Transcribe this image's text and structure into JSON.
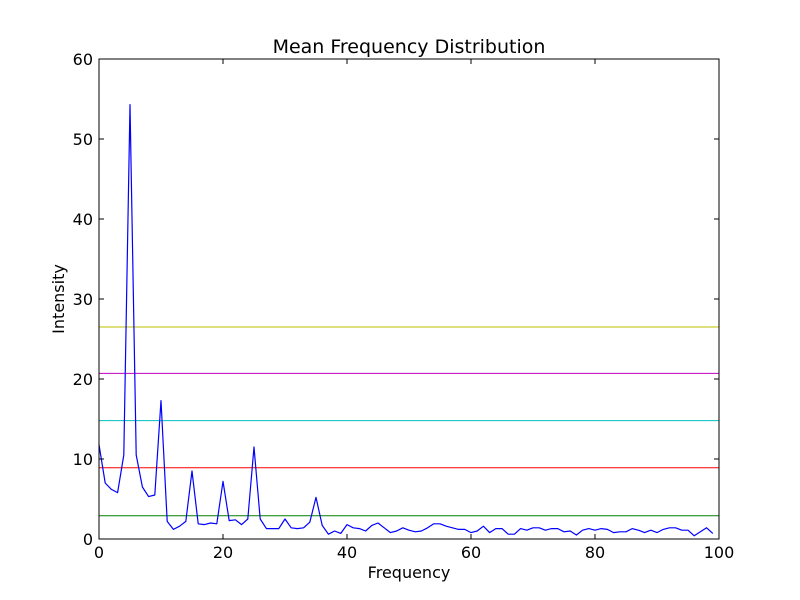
{
  "chart_data": {
    "type": "line",
    "title": "Mean Frequency Distribution",
    "xlabel": "Frequency",
    "ylabel": "Intensity",
    "xlim": [
      0,
      100
    ],
    "ylim": [
      0,
      60
    ],
    "xticks": [
      0,
      20,
      40,
      60,
      80,
      100
    ],
    "yticks": [
      0,
      10,
      20,
      30,
      40,
      50,
      60
    ],
    "grid": false,
    "legend": "none",
    "series": [
      {
        "color": "#0000ff",
        "x": [
          0,
          1,
          2,
          3,
          4,
          5,
          6,
          7,
          8,
          9,
          10,
          11,
          12,
          13,
          14,
          15,
          16,
          17,
          18,
          19,
          20,
          21,
          22,
          23,
          24,
          25,
          26,
          27,
          28,
          29,
          30,
          31,
          32,
          33,
          34,
          35,
          36,
          37,
          38,
          39,
          40,
          41,
          42,
          43,
          44,
          45,
          46,
          47,
          48,
          49,
          50,
          51,
          52,
          53,
          54,
          55,
          56,
          57,
          58,
          59,
          60,
          61,
          62,
          63,
          64,
          65,
          66,
          67,
          68,
          69,
          70,
          71,
          72,
          73,
          74,
          75,
          76,
          77,
          78,
          79,
          80,
          81,
          82,
          83,
          84,
          85,
          86,
          87,
          88,
          89,
          90,
          91,
          92,
          93,
          94,
          95,
          96,
          97,
          98,
          99
        ],
        "y": [
          11.8,
          7.0,
          6.2,
          5.8,
          10.5,
          54.3,
          10.5,
          6.5,
          5.3,
          5.5,
          17.3,
          2.2,
          1.2,
          1.6,
          2.2,
          8.5,
          1.9,
          1.8,
          2.0,
          1.9,
          7.2,
          2.3,
          2.4,
          1.8,
          2.5,
          11.5,
          2.5,
          1.3,
          1.3,
          1.3,
          2.5,
          1.4,
          1.3,
          1.4,
          2.1,
          5.2,
          1.7,
          0.6,
          1.0,
          0.7,
          1.8,
          1.4,
          1.3,
          1.0,
          1.7,
          2.0,
          1.4,
          0.8,
          1.0,
          1.4,
          1.1,
          0.9,
          1.0,
          1.4,
          1.9,
          1.9,
          1.6,
          1.4,
          1.2,
          1.2,
          0.8,
          1.0,
          1.6,
          0.8,
          1.3,
          1.3,
          0.6,
          0.6,
          1.3,
          1.1,
          1.4,
          1.4,
          1.1,
          1.3,
          1.3,
          0.9,
          1.0,
          0.5,
          1.1,
          1.3,
          1.1,
          1.3,
          1.2,
          0.8,
          0.9,
          0.9,
          1.3,
          1.1,
          0.8,
          1.1,
          0.8,
          1.2,
          1.4,
          1.4,
          1.1,
          1.1,
          0.4,
          0.9,
          1.4,
          0.7
        ]
      }
    ],
    "hlines": [
      {
        "y": 2.9,
        "color": "#008000"
      },
      {
        "y": 8.9,
        "color": "#ff0000"
      },
      {
        "y": 14.8,
        "color": "#00bfbf"
      },
      {
        "y": 20.7,
        "color": "#bf00bf"
      },
      {
        "y": 26.5,
        "color": "#bfbf00"
      }
    ]
  }
}
